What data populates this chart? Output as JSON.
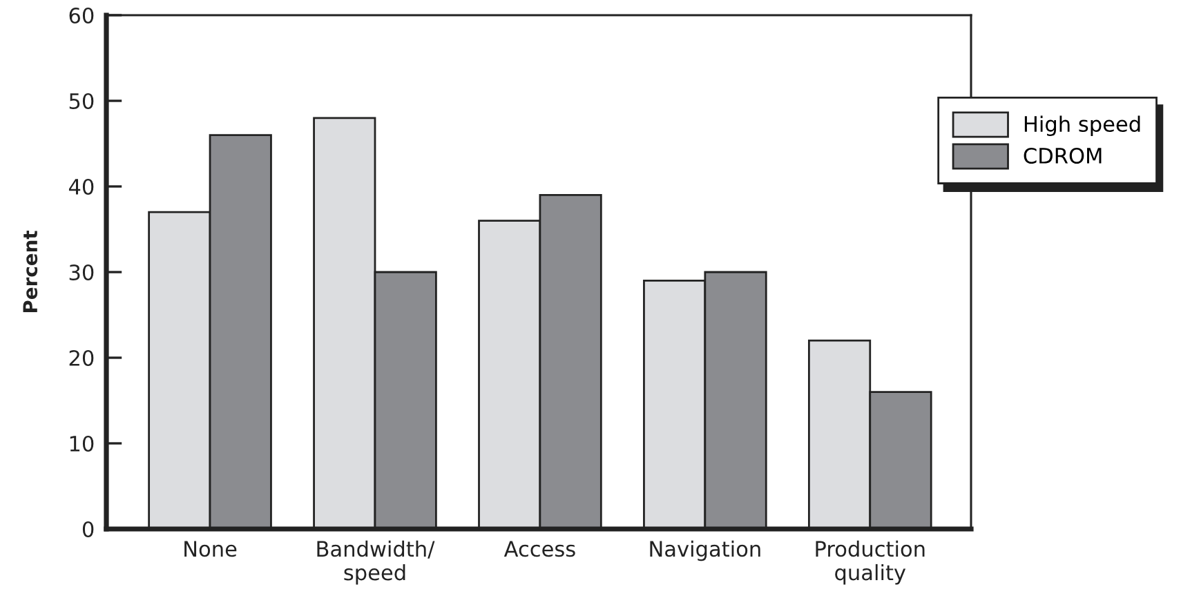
{
  "chart_data": {
    "type": "bar",
    "ylabel": "Percent",
    "categories": [
      "None",
      "Bandwidth/\nspeed",
      "Access",
      "Navigation",
      "Production\nquality"
    ],
    "series": [
      {
        "name": "High speed",
        "color": "#dcdde0",
        "values": [
          37,
          48,
          36,
          29,
          22
        ]
      },
      {
        "name": "CDROM",
        "color": "#8b8c90",
        "values": [
          46,
          30,
          39,
          30,
          16
        ]
      }
    ],
    "ylim": [
      0,
      60
    ],
    "yticks": [
      0,
      10,
      20,
      30,
      40,
      50,
      60
    ],
    "grid": false,
    "legend": "right"
  }
}
